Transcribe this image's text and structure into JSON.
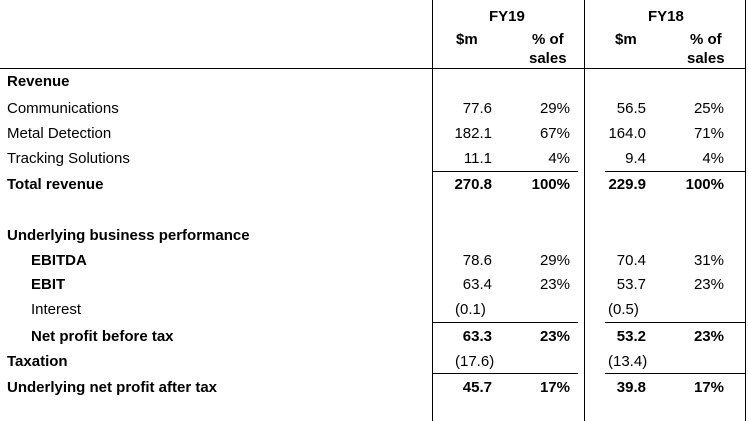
{
  "header": {
    "fy19": "FY19",
    "fy18": "FY18",
    "sm": "$m",
    "pct_line1": "% of",
    "pct_line2": "sales"
  },
  "revenue": {
    "heading": "Revenue",
    "rows": [
      {
        "label": "Communications",
        "fy19_sm": "77.6",
        "fy19_pct": "29%",
        "fy18_sm": "56.5",
        "fy18_pct": "25%"
      },
      {
        "label": "Metal Detection",
        "fy19_sm": "182.1",
        "fy19_pct": "67%",
        "fy18_sm": "164.0",
        "fy18_pct": "71%"
      },
      {
        "label": "Tracking Solutions",
        "fy19_sm": "11.1",
        "fy19_pct": "4%",
        "fy18_sm": "9.4",
        "fy18_pct": "4%"
      }
    ],
    "total": {
      "label": "Total revenue",
      "fy19_sm": "270.8",
      "fy19_pct": "100%",
      "fy18_sm": "229.9",
      "fy18_pct": "100%"
    }
  },
  "underlying": {
    "heading": "Underlying business performance",
    "ebitda": {
      "label": "EBITDA",
      "fy19_sm": "78.6",
      "fy19_pct": "29%",
      "fy18_sm": "70.4",
      "fy18_pct": "31%"
    },
    "ebit": {
      "label": "EBIT",
      "fy19_sm": "63.4",
      "fy19_pct": "23%",
      "fy18_sm": "53.7",
      "fy18_pct": "23%"
    },
    "interest": {
      "label": "Interest",
      "fy19_sm": "(0.1)",
      "fy19_pct": "",
      "fy18_sm": "(0.5)",
      "fy18_pct": ""
    },
    "npbt": {
      "label": "Net profit before tax",
      "fy19_sm": "63.3",
      "fy19_pct": "23%",
      "fy18_sm": "53.2",
      "fy18_pct": "23%"
    },
    "taxation": {
      "label": "Taxation",
      "fy19_sm": "(17.6)",
      "fy19_pct": "",
      "fy18_sm": "(13.4)",
      "fy18_pct": ""
    },
    "npat": {
      "label": "Underlying net profit after tax",
      "fy19_sm": "45.7",
      "fy19_pct": "17%",
      "fy18_sm": "39.8",
      "fy18_pct": "17%"
    }
  }
}
